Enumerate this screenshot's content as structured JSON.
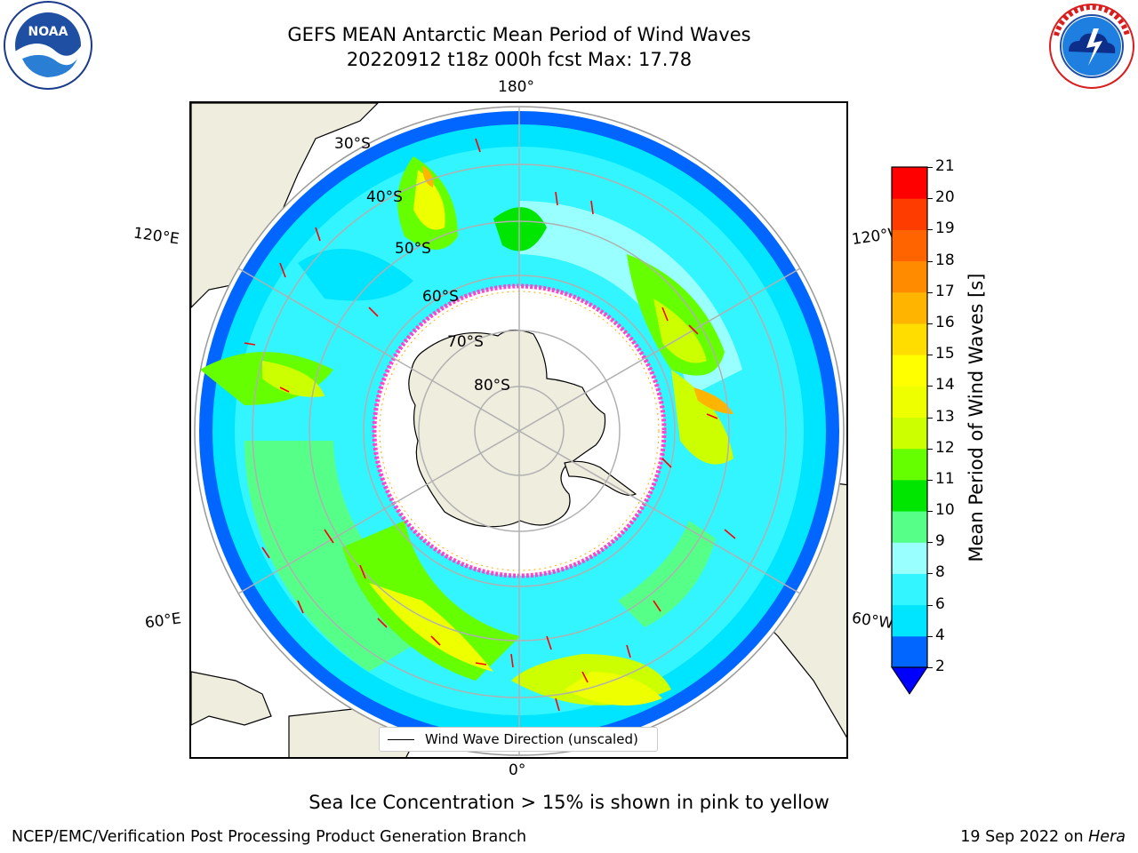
{
  "title": {
    "line1": "GEFS MEAN Antarctic Mean Period of Wind Waves",
    "line2": "20220912 t18z 000h fcst   Max: 17.78"
  },
  "logos": {
    "left": {
      "name": "noaa-logo",
      "text": "NOAA",
      "ring_text": "NATIONAL OCEANIC AND ATMOSPHERIC ADMINISTRATION · U.S. DEPARTMENT OF COMMERCE"
    },
    "right": {
      "name": "nws-logo",
      "ring_text": "NATIONAL WEATHER SERVICE"
    }
  },
  "map": {
    "projection": "south-polar-stereographic",
    "longitude_labels": {
      "top": "180°",
      "bottom": "0°",
      "upper_left": "120°E",
      "upper_right": "120°W",
      "lower_left": "60°E",
      "lower_right": "60°W"
    },
    "latitude_labels": [
      "30°S",
      "40°S",
      "50°S",
      "60°S",
      "70°S",
      "80°S"
    ],
    "legend": "Wind Wave Direction (unscaled)",
    "arrow_color": "#ff0000",
    "land_color": "#efedde",
    "sea_ice_color": "#ff44cc"
  },
  "colorbar": {
    "label": "Mean Period of Wind Waves [s]",
    "ticks": [
      "21",
      "20",
      "19",
      "18",
      "17",
      "16",
      "15",
      "14",
      "13",
      "12",
      "11",
      "10",
      "9",
      "8",
      "6",
      "4",
      "2"
    ],
    "levels": [
      {
        "from": 2,
        "to": 4,
        "color": "#0066ff"
      },
      {
        "from": 4,
        "to": 6,
        "color": "#00e5ff"
      },
      {
        "from": 6,
        "to": 8,
        "color": "#33f5ff"
      },
      {
        "from": 8,
        "to": 9,
        "color": "#99ffff"
      },
      {
        "from": 9,
        "to": 10,
        "color": "#55ff88"
      },
      {
        "from": 10,
        "to": 11,
        "color": "#00e600"
      },
      {
        "from": 11,
        "to": 12,
        "color": "#66ff00"
      },
      {
        "from": 12,
        "to": 13,
        "color": "#ccff00"
      },
      {
        "from": 13,
        "to": 14,
        "color": "#eeff00"
      },
      {
        "from": 14,
        "to": 15,
        "color": "#ffff00"
      },
      {
        "from": 15,
        "to": 16,
        "color": "#ffdd00"
      },
      {
        "from": 16,
        "to": 17,
        "color": "#ffb400"
      },
      {
        "from": 17,
        "to": 18,
        "color": "#ff8c00"
      },
      {
        "from": 18,
        "to": 19,
        "color": "#ff6400"
      },
      {
        "from": 19,
        "to": 20,
        "color": "#ff3c00"
      },
      {
        "from": 20,
        "to": 21,
        "color": "#ff0000"
      }
    ],
    "under_color": "#0000ff"
  },
  "subtitle": "Sea Ice Concentration > 15% is shown in pink to yellow",
  "footer": {
    "left": "NCEP/EMC/Verification Post Processing Product Generation Branch",
    "right_date": "19 Sep 2022 on",
    "right_machine": "Hera"
  }
}
